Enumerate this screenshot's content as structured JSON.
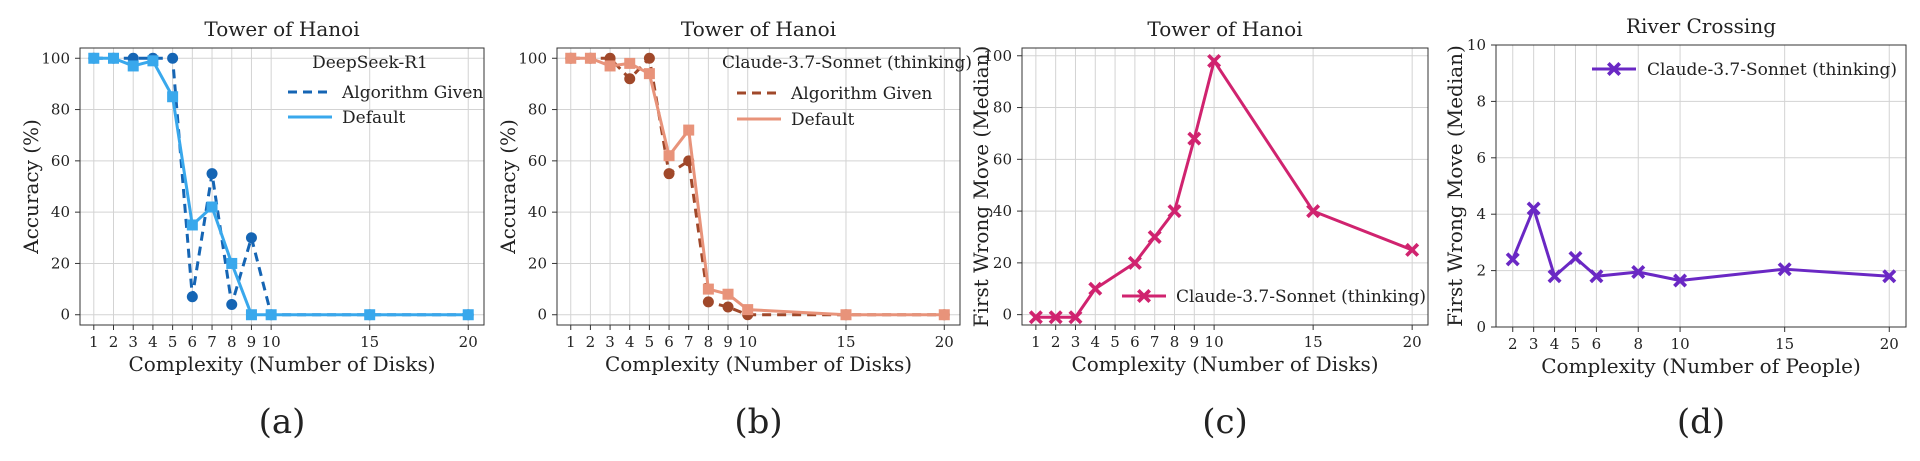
{
  "chart_data": [
    {
      "type": "line",
      "title": "Tower of Hanoi",
      "xlabel": "Complexity (Number of Disks)",
      "ylabel": "Accuracy (%)",
      "panel_label": "(a)",
      "xlim": [
        0.3,
        20.8
      ],
      "ylim": [
        -4,
        104
      ],
      "xticks": [
        1,
        2,
        3,
        4,
        5,
        6,
        7,
        8,
        9,
        10,
        15,
        20
      ],
      "yticks": [
        0,
        20,
        40,
        60,
        80,
        100
      ],
      "grid": true,
      "legend": {
        "title": "DeepSeek-R1",
        "position": "top-right"
      },
      "series": [
        {
          "name": "Algorithm Given",
          "style": "dashed",
          "marker": "circle",
          "color": "#1565b4",
          "x": [
            1,
            2,
            3,
            4,
            5,
            6,
            7,
            8,
            9,
            10,
            15,
            20
          ],
          "y": [
            100,
            100,
            100,
            100,
            100,
            7,
            55,
            4,
            30,
            0,
            0,
            0
          ]
        },
        {
          "name": "Default",
          "style": "solid",
          "marker": "square",
          "color": "#39a8ec",
          "x": [
            1,
            2,
            3,
            4,
            5,
            6,
            7,
            8,
            9,
            10,
            15,
            20
          ],
          "y": [
            100,
            100,
            97,
            99,
            85,
            35,
            42,
            20,
            0,
            0,
            0,
            0
          ]
        }
      ]
    },
    {
      "type": "line",
      "title": "Tower of Hanoi",
      "xlabel": "Complexity (Number of Disks)",
      "ylabel": "Accuracy (%)",
      "panel_label": "(b)",
      "xlim": [
        0.3,
        20.8
      ],
      "ylim": [
        -4,
        104
      ],
      "xticks": [
        1,
        2,
        3,
        4,
        5,
        6,
        7,
        8,
        9,
        10,
        15,
        20
      ],
      "yticks": [
        0,
        20,
        40,
        60,
        80,
        100
      ],
      "grid": true,
      "legend": {
        "title": "Claude-3.7-Sonnet (thinking)",
        "position": "top-right"
      },
      "series": [
        {
          "name": "Algorithm Given",
          "style": "dashed",
          "marker": "circle",
          "color": "#a0482a",
          "x": [
            1,
            2,
            3,
            4,
            5,
            6,
            7,
            8,
            9,
            10,
            15,
            20
          ],
          "y": [
            100,
            100,
            100,
            92,
            100,
            55,
            60,
            5,
            3,
            0,
            0,
            0
          ]
        },
        {
          "name": "Default",
          "style": "solid",
          "marker": "square",
          "color": "#e8937a",
          "x": [
            1,
            2,
            3,
            4,
            5,
            6,
            7,
            8,
            9,
            10,
            15,
            20
          ],
          "y": [
            100,
            100,
            97,
            98,
            94,
            62,
            72,
            10,
            8,
            2,
            0,
            0
          ]
        }
      ]
    },
    {
      "type": "line",
      "title": "Tower of Hanoi",
      "xlabel": "Complexity (Number of Disks)",
      "ylabel": "First Wrong Move (Median)",
      "panel_label": "(c)",
      "xlim": [
        0.3,
        20.8
      ],
      "ylim": [
        -4,
        103
      ],
      "xticks": [
        1,
        2,
        3,
        4,
        5,
        6,
        7,
        8,
        9,
        10,
        15,
        20
      ],
      "yticks": [
        0,
        20,
        40,
        60,
        80,
        100
      ],
      "grid": true,
      "legend": {
        "title": "",
        "position": "lower-right"
      },
      "series": [
        {
          "name": "Claude-3.7-Sonnet (thinking)",
          "style": "solid",
          "marker": "x",
          "color": "#d0236f",
          "x": [
            1,
            2,
            3,
            4,
            6,
            7,
            8,
            9,
            10,
            15,
            20
          ],
          "y": [
            -1,
            -1,
            -1,
            10,
            20,
            30,
            40,
            68,
            98,
            40,
            25
          ]
        }
      ]
    },
    {
      "type": "line",
      "title": "River Crossing",
      "xlabel": "Complexity (Number of People)",
      "ylabel": "First Wrong Move (Median)",
      "panel_label": "(d)",
      "xlim": [
        1.2,
        20.8
      ],
      "ylim": [
        0,
        10
      ],
      "xticks": [
        2,
        3,
        4,
        5,
        6,
        8,
        10,
        15,
        20
      ],
      "yticks": [
        0,
        2,
        4,
        6,
        8,
        10
      ],
      "grid": true,
      "legend": {
        "title": "",
        "position": "top-right"
      },
      "series": [
        {
          "name": "Claude-3.7-Sonnet (thinking)",
          "style": "solid",
          "marker": "x",
          "color": "#6a28c4",
          "x": [
            2,
            3,
            4,
            5,
            6,
            8,
            10,
            15,
            20
          ],
          "y": [
            2.4,
            4.2,
            1.8,
            2.45,
            1.8,
            1.95,
            1.65,
            2.05,
            1.8
          ]
        }
      ]
    }
  ]
}
